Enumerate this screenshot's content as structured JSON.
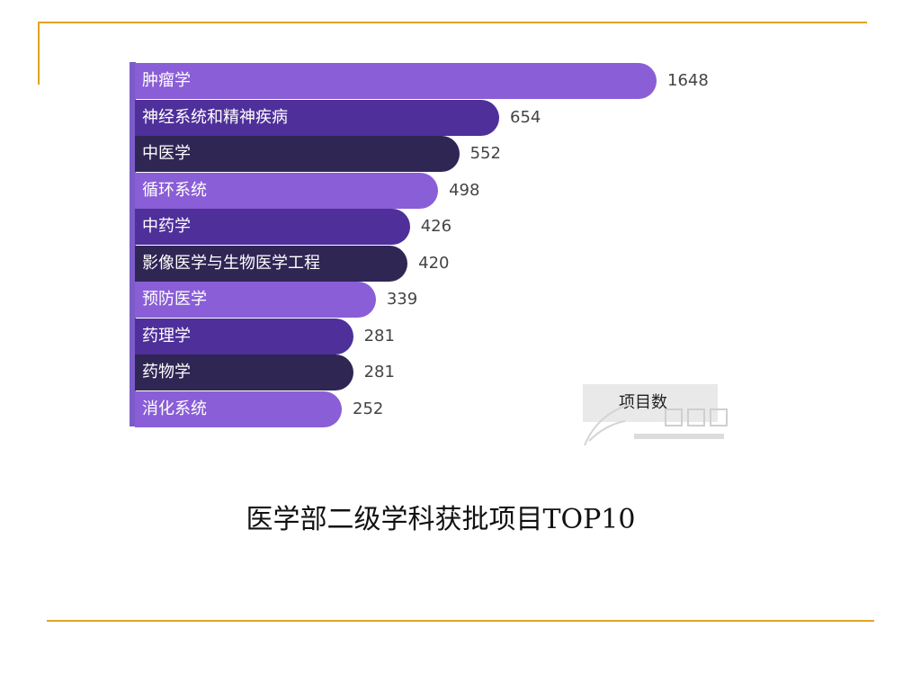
{
  "caption": "医学部二级学科获批项目TOP10",
  "legend": {
    "label": "项目数"
  },
  "colors": {
    "frame": "#e0a323",
    "purple_light": "#8a5ed6",
    "purple_mid": "#4f2f9a",
    "purple_dark": "#2f2654"
  },
  "chart_data": {
    "type": "bar",
    "orientation": "horizontal",
    "title": "",
    "categories": [
      "肿瘤学",
      "神经系统和精神疾病",
      "中医学",
      "循环系统",
      "中药学",
      "影像医学与生物医学工程",
      "预防医学",
      "药理学",
      "药物学",
      "消化系统"
    ],
    "values": [
      1648,
      654,
      552,
      498,
      426,
      420,
      339,
      281,
      281,
      252
    ],
    "series": [
      {
        "name": "项目数",
        "values": [
          1648,
          654,
          552,
          498,
          426,
          420,
          339,
          281,
          281,
          252
        ]
      }
    ],
    "bar_colors": [
      "#8a5ed6",
      "#4f2f9a",
      "#2f2654",
      "#8a5ed6",
      "#4f2f9a",
      "#2f2654",
      "#8a5ed6",
      "#4f2f9a",
      "#2f2654",
      "#8a5ed6"
    ],
    "legend_position": "bottom-right",
    "grid": false
  }
}
